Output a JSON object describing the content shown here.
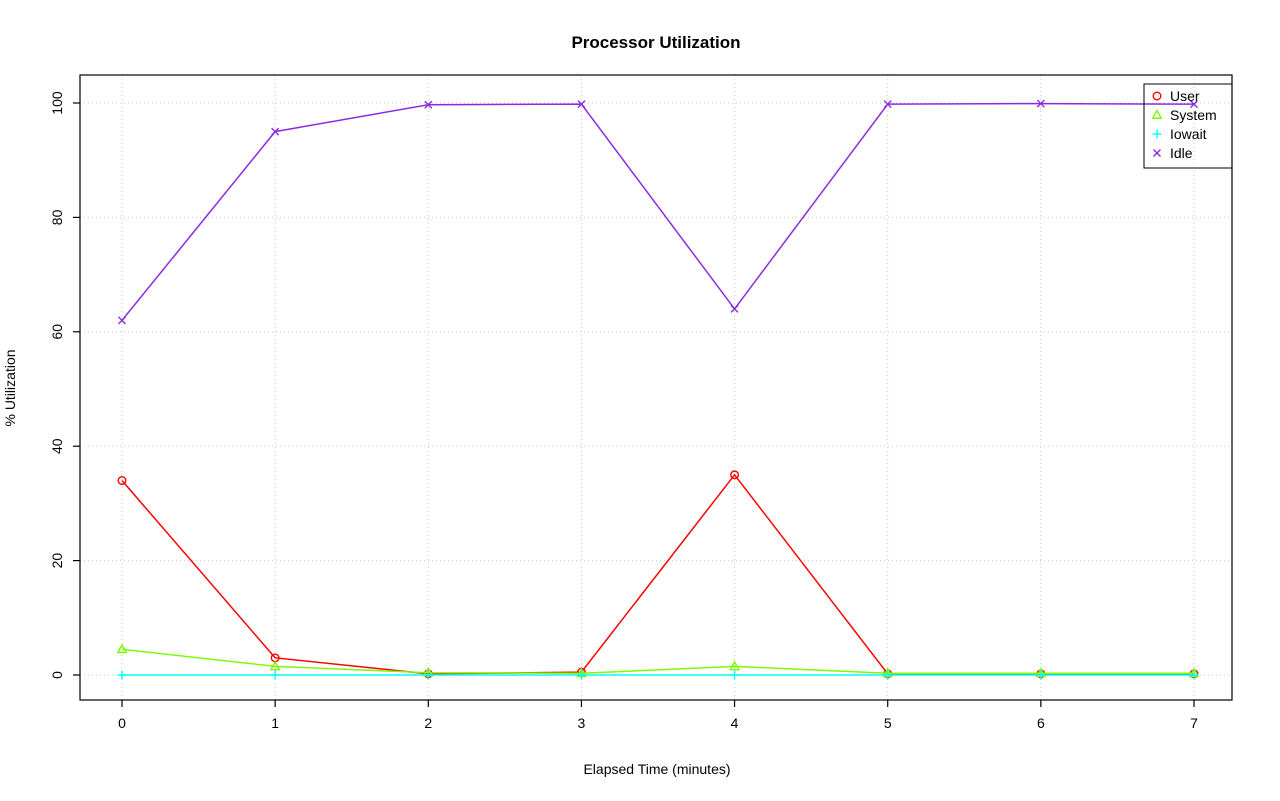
{
  "figure": {
    "title": "Processor Utilization",
    "xlabel": "Elapsed Time (minutes)",
    "ylabel": "% Utilization"
  },
  "chart_data": {
    "type": "line",
    "title": "Processor Utilization",
    "xlabel": "Elapsed Time (minutes)",
    "ylabel": "% Utilization",
    "x": [
      0,
      1,
      2,
      3,
      4,
      5,
      6,
      7
    ],
    "xticks": [
      0,
      1,
      2,
      3,
      4,
      5,
      6,
      7
    ],
    "yticks": [
      0,
      20,
      40,
      60,
      80,
      100
    ],
    "xlim": [
      0,
      7
    ],
    "ylim": [
      0,
      100
    ],
    "grid": true,
    "grid_style": "dotted",
    "grid_color": "#c8c8c8",
    "legend_position": "top-right",
    "series": [
      {
        "name": "User",
        "color": "#ff0000",
        "marker": "circle",
        "values": [
          34,
          3,
          0.2,
          0.5,
          35,
          0.2,
          0.2,
          0.2
        ]
      },
      {
        "name": "System",
        "color": "#7cfc00",
        "marker": "triangle",
        "values": [
          4.5,
          1.5,
          0.4,
          0.3,
          1.5,
          0.3,
          0.3,
          0.3
        ]
      },
      {
        "name": "Iowait",
        "color": "#00ffff",
        "marker": "plus",
        "values": [
          0,
          0,
          0,
          0,
          0,
          0,
          0,
          0
        ]
      },
      {
        "name": "Idle",
        "color": "#8a2be2",
        "marker": "x",
        "values": [
          62,
          95,
          99.7,
          99.8,
          64,
          99.8,
          99.9,
          99.8
        ]
      }
    ]
  }
}
